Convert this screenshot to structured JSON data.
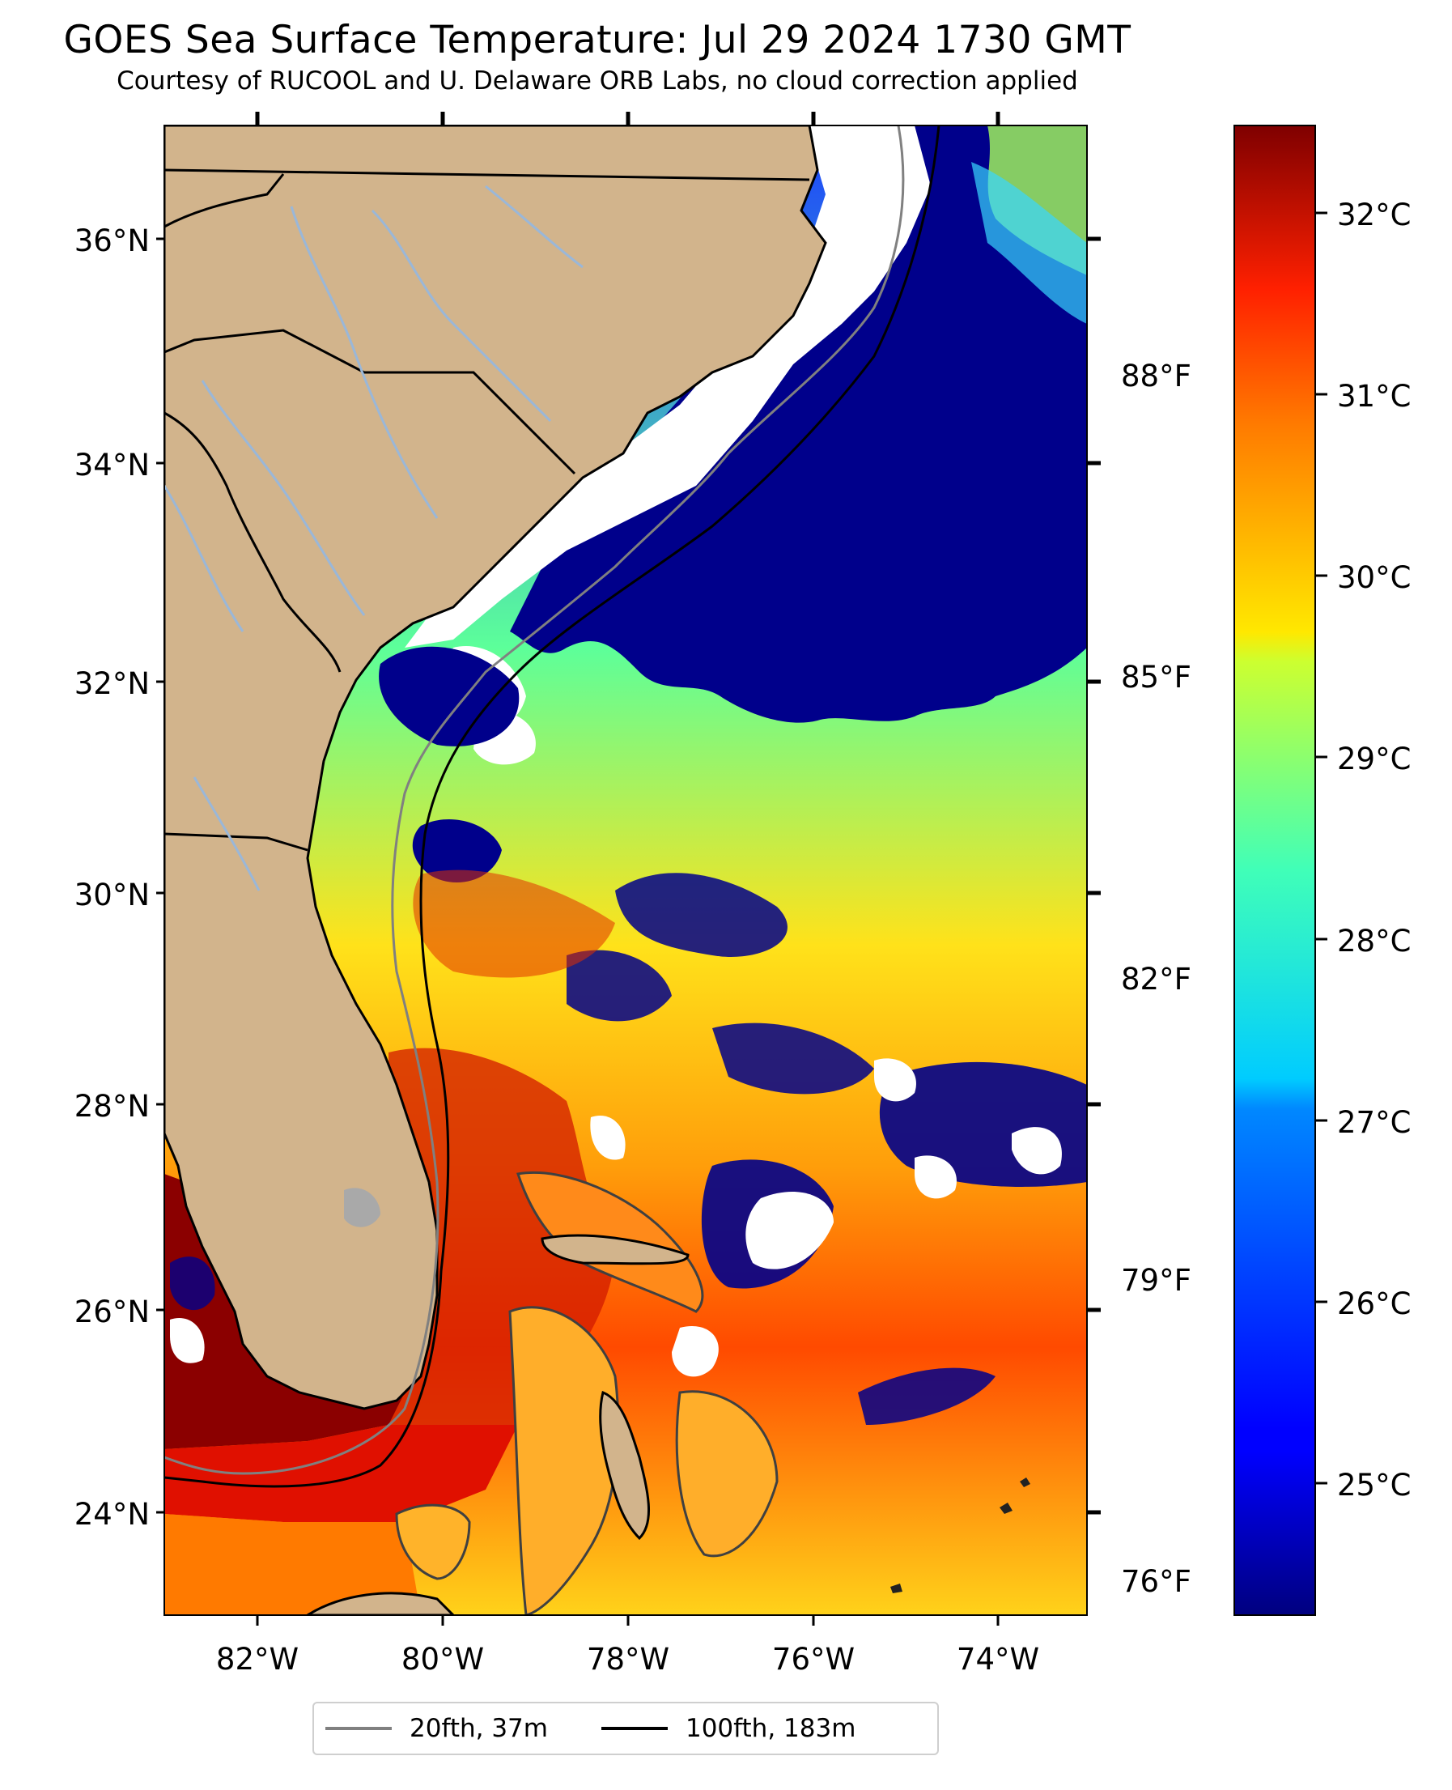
{
  "title": "GOES Sea Surface Temperature: Jul 29 2024 1730 GMT",
  "subtitle": "Courtesy of RUCOOL and U. Delaware ORB Labs, no cloud correction applied",
  "map": {
    "lon_range": [
      -83,
      -73
    ],
    "lat_range": [
      23,
      37
    ],
    "land_color": "#d2b48c",
    "cloud_color": "#ffffff",
    "river_color": "#9ab7d8",
    "lat_labels": [
      "36°N",
      "34°N",
      "32°N",
      "30°N",
      "28°N",
      "26°N",
      "24°N"
    ],
    "lon_labels": [
      "82°W",
      "80°W",
      "78°W",
      "76°W",
      "74°W"
    ],
    "fahrenheit_labels": [
      "88°F",
      "85°F",
      "82°F",
      "79°F",
      "76°F"
    ]
  },
  "colorbar": {
    "colormap": "jet",
    "range_c": [
      24.3,
      32.5
    ],
    "labels": [
      "32°C",
      "31°C",
      "30°C",
      "29°C",
      "28°C",
      "27°C",
      "26°C",
      "25°C"
    ]
  },
  "legend": {
    "items": [
      {
        "label": "20fth, 37m",
        "color": "#808080"
      },
      {
        "label": "100fth, 183m",
        "color": "#000000"
      }
    ]
  }
}
